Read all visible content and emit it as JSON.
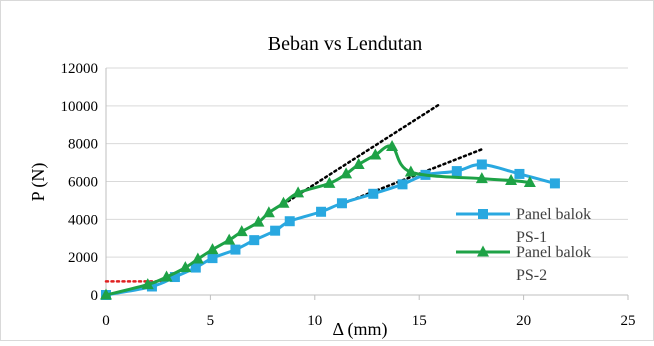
{
  "chart_data": {
    "type": "line",
    "title": "Beban vs Lendutan",
    "xlabel": "Δ (mm)",
    "ylabel": "P (N)",
    "xlim": [
      0,
      25
    ],
    "ylim": [
      0,
      12000
    ],
    "xticks": [
      "0",
      "5",
      "10",
      "15",
      "20",
      "25"
    ],
    "yticks": [
      "0",
      "2000",
      "4000",
      "6000",
      "8000",
      "10000",
      "12000"
    ],
    "grid": "horizontal",
    "legend_position": "right",
    "series": [
      {
        "name": "Panel balok PS-1",
        "name_lines": [
          "Panel balok",
          "PS-1"
        ],
        "color": "#29A8E0",
        "marker": "square",
        "x": [
          0,
          2.2,
          3.3,
          4.3,
          5.1,
          6.2,
          7.1,
          8.1,
          8.8,
          10.3,
          11.3,
          12.8,
          14.2,
          15.3,
          16.8,
          18,
          19.8,
          21.5
        ],
        "y": [
          0,
          450,
          950,
          1450,
          1950,
          2400,
          2900,
          3400,
          3900,
          4400,
          4850,
          5350,
          5850,
          6350,
          6550,
          6900,
          6400,
          5900
        ]
      },
      {
        "name": "Panel balok PS-2",
        "name_lines": [
          "Panel balok",
          "PS-2"
        ],
        "color": "#1EA246",
        "marker": "triangle",
        "x": [
          0,
          2,
          2.9,
          3.8,
          4.4,
          5.1,
          5.9,
          6.5,
          7.3,
          7.8,
          8.5,
          9.2,
          10.7,
          11.5,
          12.1,
          12.9,
          13.7,
          14.6,
          18,
          19.4,
          20.3
        ],
        "y": [
          0,
          550,
          950,
          1450,
          1900,
          2400,
          2900,
          3350,
          3850,
          4350,
          4850,
          5400,
          5900,
          6400,
          6900,
          7400,
          7850,
          6500,
          6150,
          6050,
          5950
        ]
      }
    ],
    "reference_lines": [
      {
        "style": "dotted",
        "color": "#000000",
        "x": [
          8.5,
          16
        ],
        "y": [
          4800,
          10100
        ]
      },
      {
        "style": "dotted",
        "color": "#000000",
        "x": [
          11.5,
          18
        ],
        "y": [
          4900,
          7700
        ]
      },
      {
        "style": "dotted",
        "color": "#E02020",
        "x": [
          0,
          2.8
        ],
        "y": [
          720,
          720
        ]
      }
    ]
  }
}
